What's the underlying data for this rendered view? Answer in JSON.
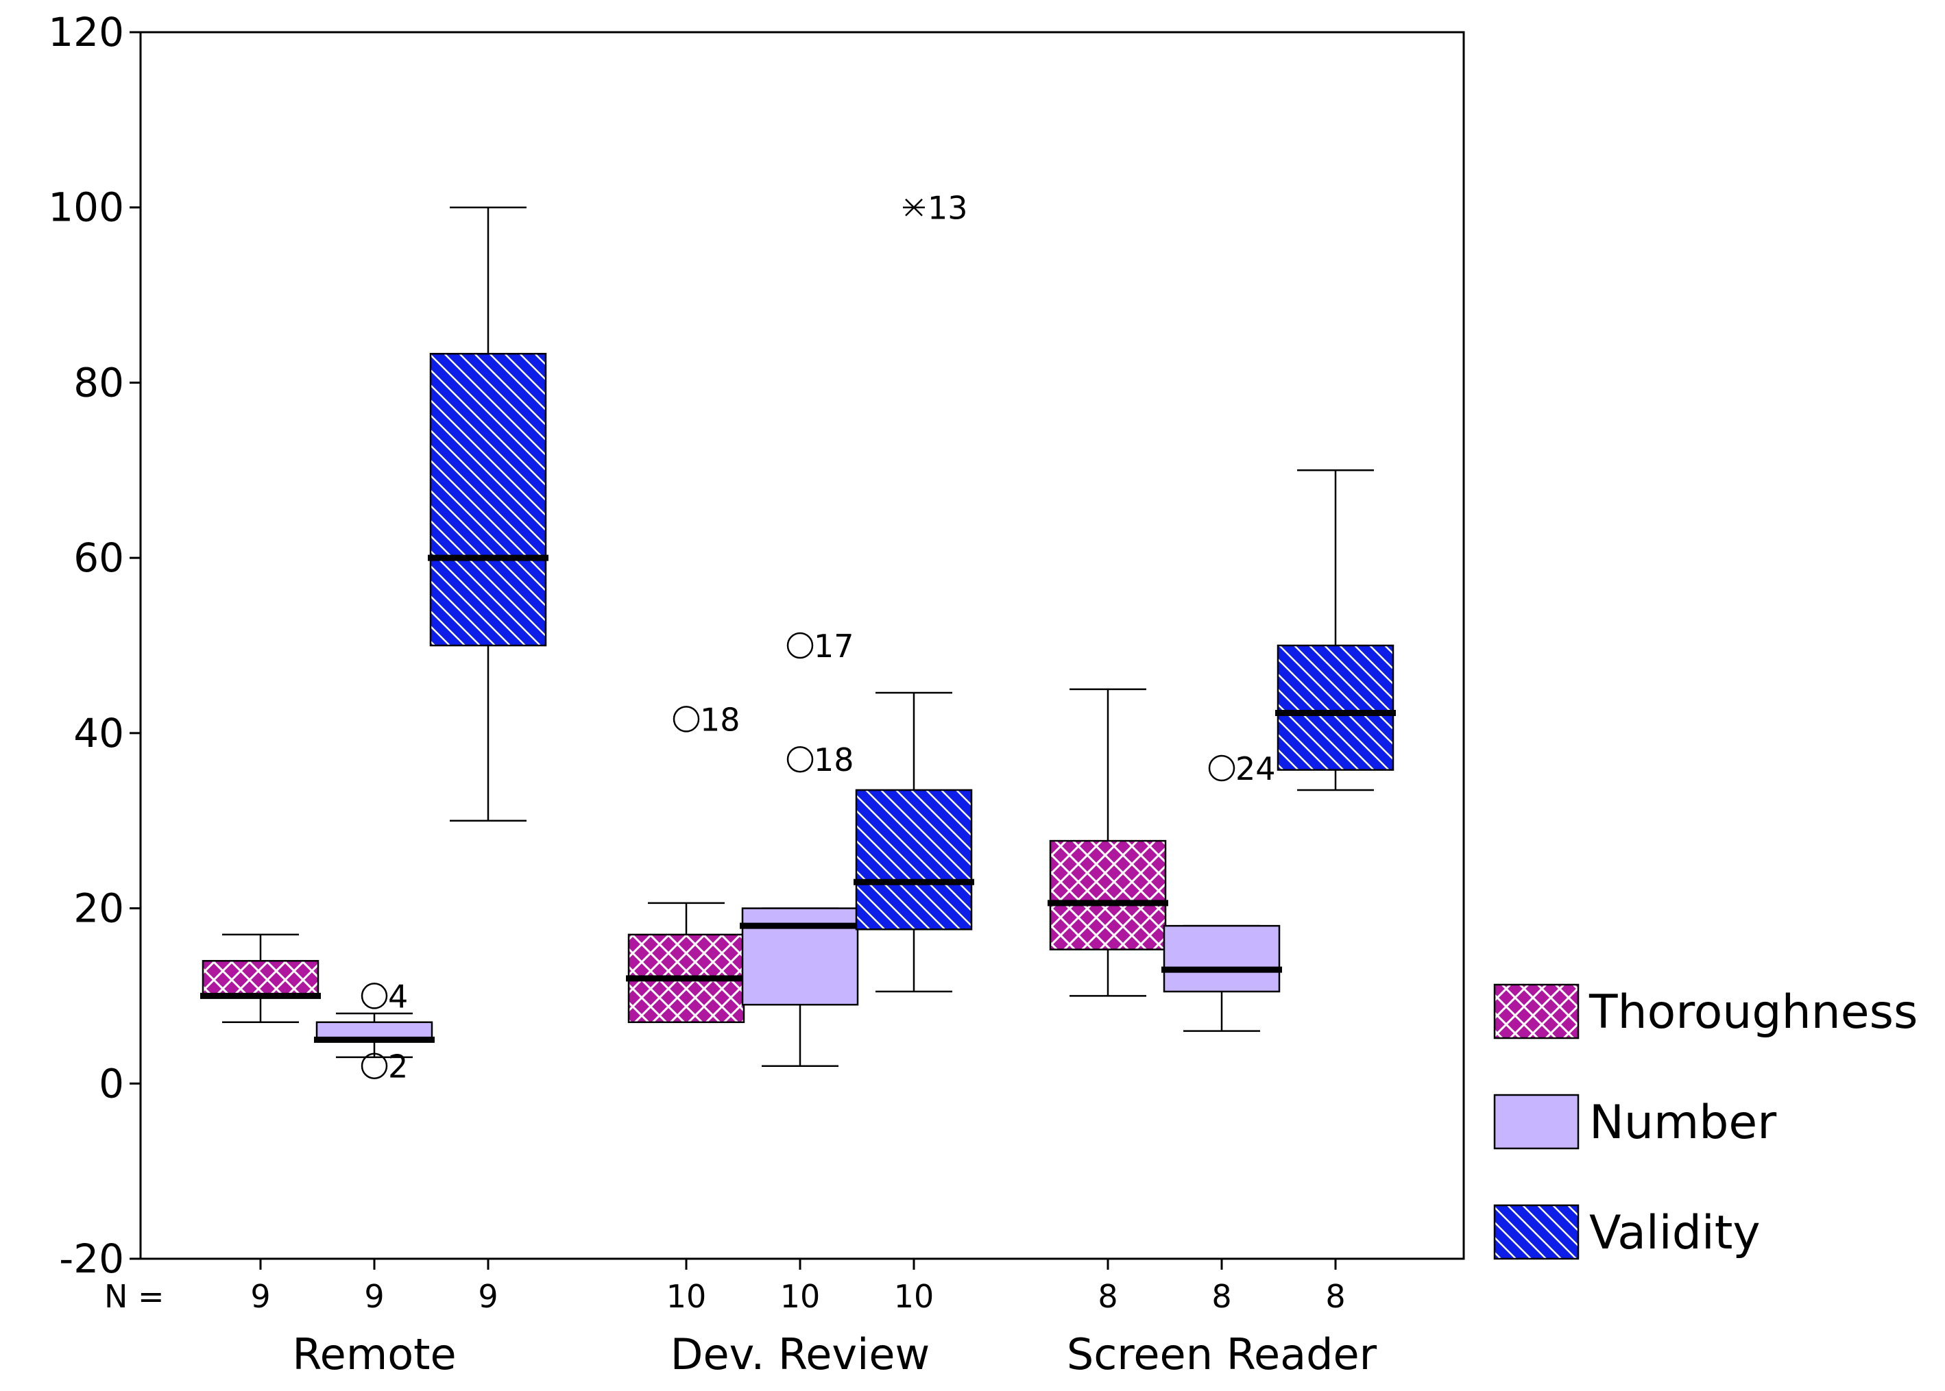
{
  "chart_data": {
    "type": "box",
    "title": "",
    "xlabel": "",
    "ylabel": "",
    "ylim": [
      -20,
      120
    ],
    "y_ticks": [
      -20,
      0,
      20,
      40,
      60,
      80,
      100,
      120
    ],
    "y_tick_labels": [
      "-20",
      "0",
      "20",
      "40",
      "60",
      "80",
      "100",
      "120"
    ],
    "n_prefix": "N =",
    "groups": [
      "Remote",
      "Dev. Review",
      "Screen Reader"
    ],
    "series": [
      {
        "name": "Thoroughness",
        "color": "#b0179f"
      },
      {
        "name": "Number",
        "color": "#c7b6ff"
      },
      {
        "name": "Validity",
        "color": "#0d1ee8"
      }
    ],
    "boxes": [
      {
        "group": "Remote",
        "series": "Thoroughness",
        "n": "9",
        "min": 7,
        "q1": 10,
        "median": 10,
        "q3": 14,
        "max": 17,
        "outliers": []
      },
      {
        "group": "Remote",
        "series": "Number",
        "n": "9",
        "min": 3,
        "q1": 5,
        "median": 5,
        "q3": 7,
        "max": 8,
        "outliers": [
          {
            "value": 10,
            "label": "4",
            "marker": "circle"
          },
          {
            "value": 2,
            "label": "2",
            "marker": "circle"
          }
        ]
      },
      {
        "group": "Remote",
        "series": "Validity",
        "n": "9",
        "min": 30,
        "q1": 50,
        "median": 60,
        "q3": 83.3,
        "max": 100,
        "outliers": []
      },
      {
        "group": "Dev. Review",
        "series": "Thoroughness",
        "n": "10",
        "min": 7,
        "q1": 7,
        "median": 12,
        "q3": 17,
        "max": 20.6,
        "outliers": [
          {
            "value": 41.6,
            "label": "18",
            "marker": "circle"
          }
        ]
      },
      {
        "group": "Dev. Review",
        "series": "Number",
        "n": "10",
        "min": 2,
        "q1": 9,
        "median": 18,
        "q3": 20,
        "max": 20,
        "outliers": [
          {
            "value": 50,
            "label": "17",
            "marker": "circle"
          },
          {
            "value": 37,
            "label": "18",
            "marker": "circle"
          }
        ]
      },
      {
        "group": "Dev. Review",
        "series": "Validity",
        "n": "10",
        "min": 10.5,
        "q1": 17.6,
        "median": 23,
        "q3": 33.5,
        "max": 44.6,
        "outliers": [
          {
            "value": 100,
            "label": "13",
            "marker": "star"
          }
        ]
      },
      {
        "group": "Screen Reader",
        "series": "Thoroughness",
        "n": "8",
        "min": 10,
        "q1": 15.3,
        "median": 20.6,
        "q3": 27.7,
        "max": 45,
        "outliers": []
      },
      {
        "group": "Screen Reader",
        "series": "Number",
        "n": "8",
        "min": 6,
        "q1": 10.5,
        "median": 13,
        "q3": 18,
        "max": 18,
        "outliers": [
          {
            "value": 36,
            "label": "24",
            "marker": "circle"
          }
        ]
      },
      {
        "group": "Screen Reader",
        "series": "Validity",
        "n": "8",
        "min": 33.5,
        "q1": 35.8,
        "median": 42.3,
        "q3": 50,
        "max": 70,
        "outliers": []
      }
    ]
  }
}
